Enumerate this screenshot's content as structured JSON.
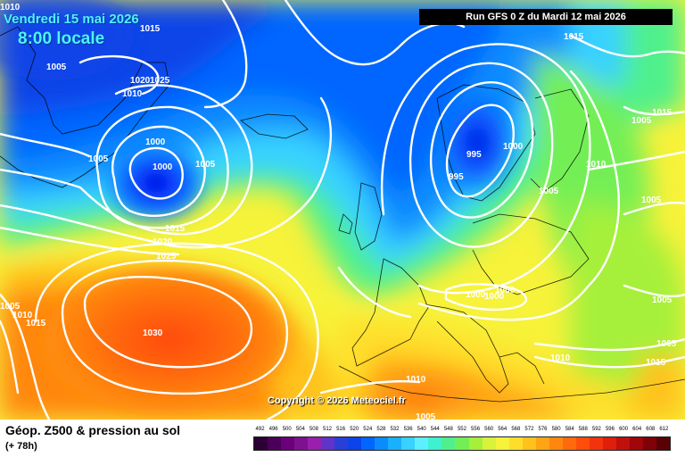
{
  "header": {
    "date": "Vendredi 15 mai 2026",
    "local_time": "8:00 locale",
    "run": "Run GFS 0 Z du Mardi 12 mai 2026"
  },
  "copyright": "Copyright © 2026 Meteociel.fr",
  "footer": {
    "title": "Géop. Z500 & pression au sol",
    "lead_time": "(+ 78h)"
  },
  "legend": {
    "labels": [
      "492",
      "496",
      "500",
      "504",
      "508",
      "512",
      "516",
      "520",
      "524",
      "528",
      "532",
      "536",
      "540",
      "544",
      "548",
      "552",
      "556",
      "560",
      "564",
      "568",
      "572",
      "576",
      "580",
      "584",
      "588",
      "592",
      "596",
      "600",
      "604",
      "608",
      "612"
    ],
    "colors": [
      "#2c0036",
      "#4a0058",
      "#6a007a",
      "#7e1190",
      "#9a1fae",
      "#5f34c9",
      "#2a3fd8",
      "#0b44e8",
      "#0066ff",
      "#0a8cff",
      "#19b1ff",
      "#39d1ff",
      "#5cefff",
      "#3ef2cf",
      "#4ff08c",
      "#73ef55",
      "#a6f03a",
      "#d8f239",
      "#f7f23a",
      "#ffde2a",
      "#ffc21c",
      "#ffa515",
      "#ff870f",
      "#ff6a0c",
      "#ff4d0b",
      "#f3330c",
      "#dd1f0c",
      "#c0100b",
      "#a0060a",
      "#7e0208",
      "#5a0005"
    ]
  },
  "isobar_labels": [
    {
      "t": "1010"
    },
    {
      "t": "1015"
    },
    {
      "t": "1005"
    },
    {
      "t": "1020"
    },
    {
      "t": "1025"
    },
    {
      "t": "1010"
    },
    {
      "t": "1000"
    },
    {
      "t": "1000"
    },
    {
      "t": "1005"
    },
    {
      "t": "1005"
    },
    {
      "t": "1015"
    },
    {
      "t": "1020"
    },
    {
      "t": "1025"
    },
    {
      "t": "1030"
    },
    {
      "t": "1005"
    },
    {
      "t": "1010"
    },
    {
      "t": "1015"
    },
    {
      "t": "1015"
    },
    {
      "t": "1000"
    },
    {
      "t": "995"
    },
    {
      "t": "995"
    },
    {
      "t": "1005"
    },
    {
      "t": "1010"
    },
    {
      "t": "1015"
    },
    {
      "t": "1005"
    },
    {
      "t": "1005"
    },
    {
      "t": "1005"
    },
    {
      "t": "1005"
    },
    {
      "t": "1010"
    },
    {
      "t": "1000"
    },
    {
      "t": "1000"
    },
    {
      "t": "1000"
    },
    {
      "t": "1010"
    },
    {
      "t": "1005"
    },
    {
      "t": "1015"
    }
  ]
}
